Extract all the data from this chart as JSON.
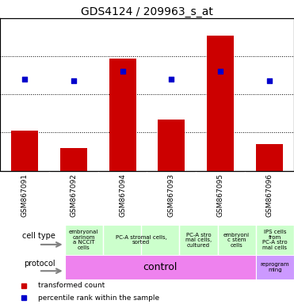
{
  "title": "GDS4124 / 209963_s_at",
  "samples": [
    "GSM867091",
    "GSM867092",
    "GSM867094",
    "GSM867093",
    "GSM867095",
    "GSM867096"
  ],
  "bar_values": [
    6.41,
    6.32,
    6.79,
    6.47,
    6.91,
    6.34
  ],
  "bar_base": 6.2,
  "percentile_values": [
    6.68,
    6.67,
    6.72,
    6.68,
    6.72,
    6.67
  ],
  "ylim": [
    6.2,
    7.0
  ],
  "yticks_left": [
    6.2,
    6.4,
    6.6,
    6.8,
    7.0
  ],
  "yticks_right": [
    0,
    25,
    50,
    75,
    100
  ],
  "bar_color": "#cc0000",
  "dot_color": "#0000cc",
  "bg_color": "#ffffff",
  "cell_groups": [
    {
      "start": 0,
      "end": 0,
      "label": "embryonal\ncarinom\na NCCIT\ncells"
    },
    {
      "start": 1,
      "end": 2,
      "label": "PC-A stromal cells,\nsorted"
    },
    {
      "start": 3,
      "end": 3,
      "label": "PC-A stro\nmal cells,\ncultured"
    },
    {
      "start": 4,
      "end": 4,
      "label": "embryoni\nc stem\ncells"
    },
    {
      "start": 5,
      "end": 5,
      "label": "IPS cells\nfrom\nPC-A stro\nmal cells"
    }
  ],
  "cell_color": "#ccffcc",
  "protocol_control_color": "#ee82ee",
  "protocol_reprog_color": "#cc99ff",
  "sample_label_bg": "#c0c0c0",
  "legend_items": [
    {
      "color": "#cc0000",
      "label": "transformed count"
    },
    {
      "color": "#0000cc",
      "label": "percentile rank within the sample"
    }
  ]
}
